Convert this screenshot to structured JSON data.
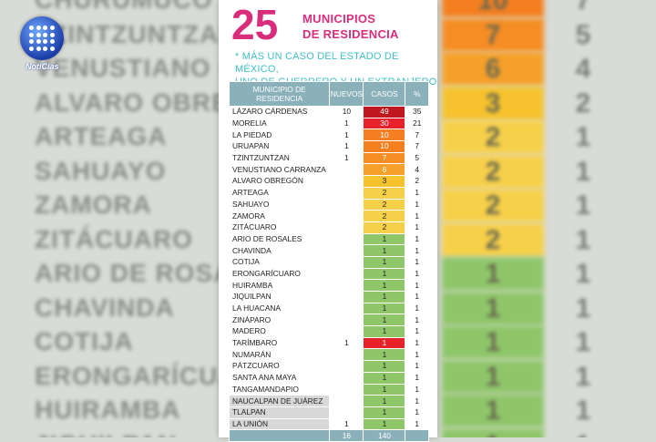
{
  "header": {
    "count": "25",
    "title_line1": "MUNICIPIOS",
    "title_line2": "DE RESIDENCIA",
    "note_line1": "* MÁS UN CASO DEL ESTADO DE MÉXICO,",
    "note_line2": "UNO DE GUERRERO Y UN EXTRANJERO"
  },
  "logo": {
    "text": "NotiCias"
  },
  "table": {
    "columns": [
      "MUNICIPIO DE RESIDENCIA",
      "NUEVOS",
      "CASOS",
      "%"
    ],
    "rows": [
      {
        "name": "LÁZARO CÁRDENAS",
        "nuevos": "10",
        "casos": "49",
        "pct": "35",
        "color": "#c0181e",
        "dark": true
      },
      {
        "name": "MORELIA",
        "nuevos": "1",
        "casos": "30",
        "pct": "21",
        "color": "#e8222a",
        "dark": true
      },
      {
        "name": "LA PIEDAD",
        "nuevos": "1",
        "casos": "10",
        "pct": "7",
        "color": "#f47f20",
        "dark": true
      },
      {
        "name": "URUAPAN",
        "nuevos": "1",
        "casos": "10",
        "pct": "7",
        "color": "#f47f20",
        "dark": true
      },
      {
        "name": "TZINTZUNTZAN",
        "nuevos": "1",
        "casos": "7",
        "pct": "5",
        "color": "#f58d24",
        "dark": true
      },
      {
        "name": "VENUSTIANO CARRANZA",
        "nuevos": "",
        "casos": "6",
        "pct": "4",
        "color": "#f6a02a",
        "dark": true
      },
      {
        "name": "ALVARO OBREGÓN",
        "nuevos": "",
        "casos": "3",
        "pct": "2",
        "color": "#f6c22e",
        "dark": false
      },
      {
        "name": "ARTEAGA",
        "nuevos": "",
        "casos": "2",
        "pct": "1",
        "color": "#f7d04a",
        "dark": false
      },
      {
        "name": "SAHUAYO",
        "nuevos": "",
        "casos": "2",
        "pct": "1",
        "color": "#f7d04a",
        "dark": false
      },
      {
        "name": "ZAMORA",
        "nuevos": "",
        "casos": "2",
        "pct": "1",
        "color": "#f7d04a",
        "dark": false
      },
      {
        "name": "ZITÁCUARO",
        "nuevos": "",
        "casos": "2",
        "pct": "1",
        "color": "#f7d04a",
        "dark": false
      },
      {
        "name": "ARIO DE ROSALES",
        "nuevos": "",
        "casos": "1",
        "pct": "1",
        "color": "#8fc66a",
        "dark": false
      },
      {
        "name": "CHAVINDA",
        "nuevos": "",
        "casos": "1",
        "pct": "1",
        "color": "#8fc66a",
        "dark": false
      },
      {
        "name": "COTIJA",
        "nuevos": "",
        "casos": "1",
        "pct": "1",
        "color": "#8fc66a",
        "dark": false
      },
      {
        "name": "ERONGARÍCUARO",
        "nuevos": "",
        "casos": "1",
        "pct": "1",
        "color": "#8fc66a",
        "dark": false
      },
      {
        "name": "HUIRAMBA",
        "nuevos": "",
        "casos": "1",
        "pct": "1",
        "color": "#8fc66a",
        "dark": false
      },
      {
        "name": "JIQUILPAN",
        "nuevos": "",
        "casos": "1",
        "pct": "1",
        "color": "#8fc66a",
        "dark": false
      },
      {
        "name": "LA HUACANA",
        "nuevos": "",
        "casos": "1",
        "pct": "1",
        "color": "#8fc66a",
        "dark": false
      },
      {
        "name": "ZINÁPARO",
        "nuevos": "",
        "casos": "1",
        "pct": "1",
        "color": "#8fc66a",
        "dark": false
      },
      {
        "name": "MADERO",
        "nuevos": "",
        "casos": "1",
        "pct": "1",
        "color": "#8fc66a",
        "dark": false
      },
      {
        "name": "TARÍMBARO",
        "nuevos": "1",
        "casos": "1",
        "pct": "1",
        "color": "#e8222a",
        "dark": true
      },
      {
        "name": "NUMARÁN",
        "nuevos": "",
        "casos": "1",
        "pct": "1",
        "color": "#8fc66a",
        "dark": false
      },
      {
        "name": "PÁTZCUARO",
        "nuevos": "",
        "casos": "1",
        "pct": "1",
        "color": "#8fc66a",
        "dark": false
      },
      {
        "name": "SANTA ANA MAYA",
        "nuevos": "",
        "casos": "1",
        "pct": "1",
        "color": "#8fc66a",
        "dark": false
      },
      {
        "name": "TANGAMANDAPIO",
        "nuevos": "",
        "casos": "1",
        "pct": "1",
        "color": "#8fc66a",
        "dark": false
      },
      {
        "name": "NAUCALPAN DE JUÁREZ",
        "nuevos": "",
        "casos": "1",
        "pct": "1",
        "color": "#8fc66a",
        "dark": false,
        "grey": true
      },
      {
        "name": "TLALPAN",
        "nuevos": "",
        "casos": "1",
        "pct": "1",
        "color": "#8fc66a",
        "dark": false,
        "grey": true
      },
      {
        "name": "LA UNIÓN",
        "nuevos": "1",
        "casos": "1",
        "pct": "1",
        "color": "#8fc66a",
        "dark": false,
        "grey": true
      }
    ],
    "total": {
      "nuevos": "16",
      "casos": "140"
    }
  },
  "background": {
    "rows": [
      {
        "name": "CHURUMUCO",
        "num": "10",
        "pct": "7",
        "color": "#f47f20"
      },
      {
        "name": "TZINTZUNTZAN",
        "num": "7",
        "pct": "5",
        "color": "#f58d24"
      },
      {
        "name": "VENUSTIANO CARRANZA",
        "num": "6",
        "pct": "4",
        "color": "#f6a02a"
      },
      {
        "name": "ALVARO OBREGÓN",
        "num": "3",
        "pct": "2",
        "color": "#f6c22e"
      },
      {
        "name": "ARTEAGA",
        "num": "2",
        "pct": "1",
        "color": "#f7d04a"
      },
      {
        "name": "SAHUAYO",
        "num": "2",
        "pct": "1",
        "color": "#f7d04a"
      },
      {
        "name": "ZAMORA",
        "num": "2",
        "pct": "1",
        "color": "#f7d04a"
      },
      {
        "name": "ZITÁCUARO",
        "num": "2",
        "pct": "1",
        "color": "#f7d04a"
      },
      {
        "name": "ARIO DE ROSALES",
        "num": "1",
        "pct": "1",
        "color": "#8fc66a"
      },
      {
        "name": "CHAVINDA",
        "num": "1",
        "pct": "1",
        "color": "#8fc66a"
      },
      {
        "name": "COTIJA",
        "num": "1",
        "pct": "1",
        "color": "#8fc66a"
      },
      {
        "name": "ERONGARÍCUARO",
        "num": "1",
        "pct": "1",
        "color": "#8fc66a"
      },
      {
        "name": "HUIRAMBA",
        "num": "1",
        "pct": "1",
        "color": "#8fc66a"
      },
      {
        "name": "JIQUILPAN",
        "num": "1",
        "pct": "1",
        "color": "#8fc66a"
      }
    ]
  }
}
